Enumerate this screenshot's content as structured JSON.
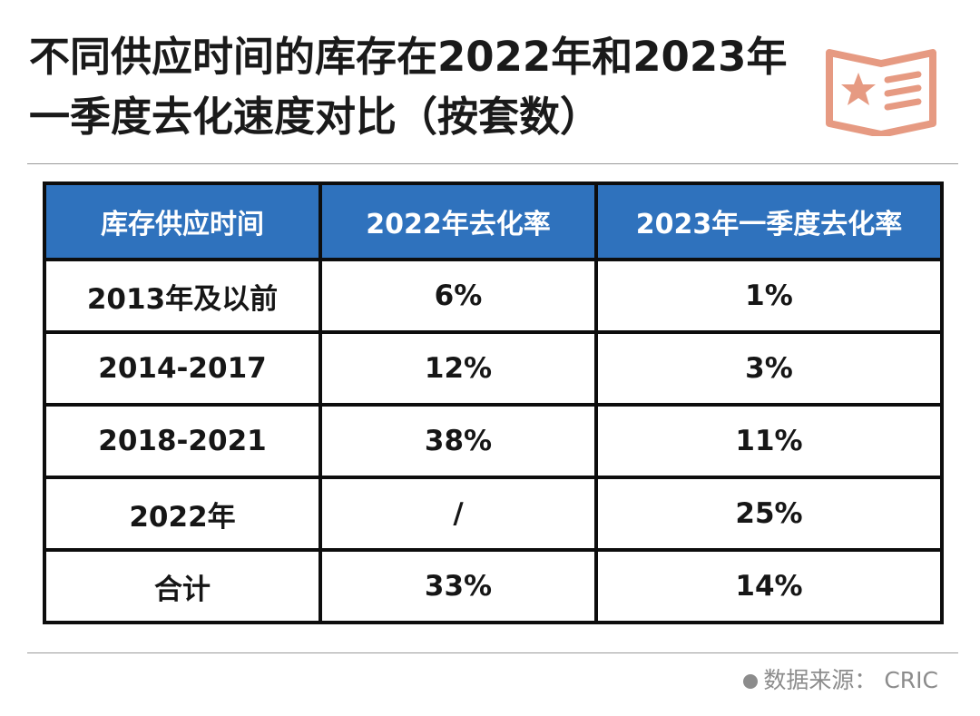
{
  "title": "不同供应时间的库存在2022年和2023年一季度去化速度对比（按套数）",
  "badge_icon": "star-list-icon",
  "accent_color": "#e69a82",
  "header_color": "#2f72bd",
  "table": {
    "columns": [
      "库存供应时间",
      "2022年去化率",
      "2023年一季度去化率"
    ],
    "rows": [
      [
        "2013年及以前",
        "6%",
        "1%"
      ],
      [
        "2014-2017",
        "12%",
        "3%"
      ],
      [
        "2018-2021",
        "38%",
        "11%"
      ],
      [
        "2022年",
        "/",
        "25%"
      ],
      [
        "合计",
        "33%",
        "14%"
      ]
    ]
  },
  "source": "数据来源：  CRIC"
}
